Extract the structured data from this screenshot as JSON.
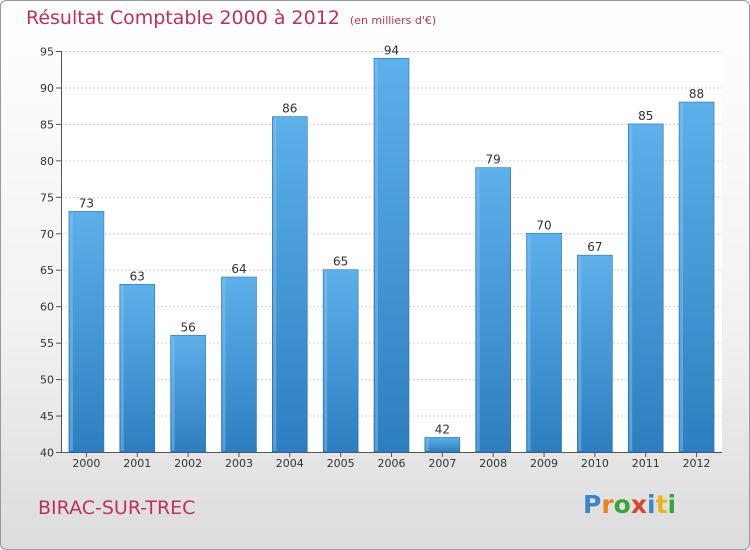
{
  "header": {
    "title": "Résultat Comptable 2000 à 2012",
    "unit": "(en milliers d'€)"
  },
  "footer": {
    "commune": "BIRAC-SUR-TREC"
  },
  "brand": {
    "logo_text": "Proxiti",
    "letters": [
      {
        "ch": "P",
        "color": "#3a86c8"
      },
      {
        "ch": "r",
        "color": "#e8851f"
      },
      {
        "ch": "o",
        "color": "#3aa63a"
      },
      {
        "ch": "x",
        "color": "#d8442c"
      },
      {
        "ch": "i",
        "color": "#3a86c8"
      },
      {
        "ch": "t",
        "color": "#e8b51f"
      },
      {
        "ch": "i",
        "color": "#3aa63a"
      }
    ]
  },
  "colors": {
    "bar_light": "#5eb0ea",
    "bar_dark": "#2c7ec0",
    "title": "#c0305a"
  },
  "chart_data": {
    "type": "bar",
    "title": "Résultat Comptable 2000 à 2012",
    "xlabel": "",
    "ylabel": "",
    "ylim": [
      40,
      95
    ],
    "yticks": [
      40,
      45,
      50,
      55,
      60,
      65,
      70,
      75,
      80,
      85,
      90,
      95
    ],
    "grid": true,
    "categories": [
      "2000",
      "2001",
      "2002",
      "2003",
      "2004",
      "2005",
      "2006",
      "2007",
      "2008",
      "2009",
      "2010",
      "2011",
      "2012"
    ],
    "values": [
      73,
      63,
      56,
      64,
      86,
      65,
      94,
      42,
      79,
      70,
      67,
      85,
      88
    ]
  }
}
